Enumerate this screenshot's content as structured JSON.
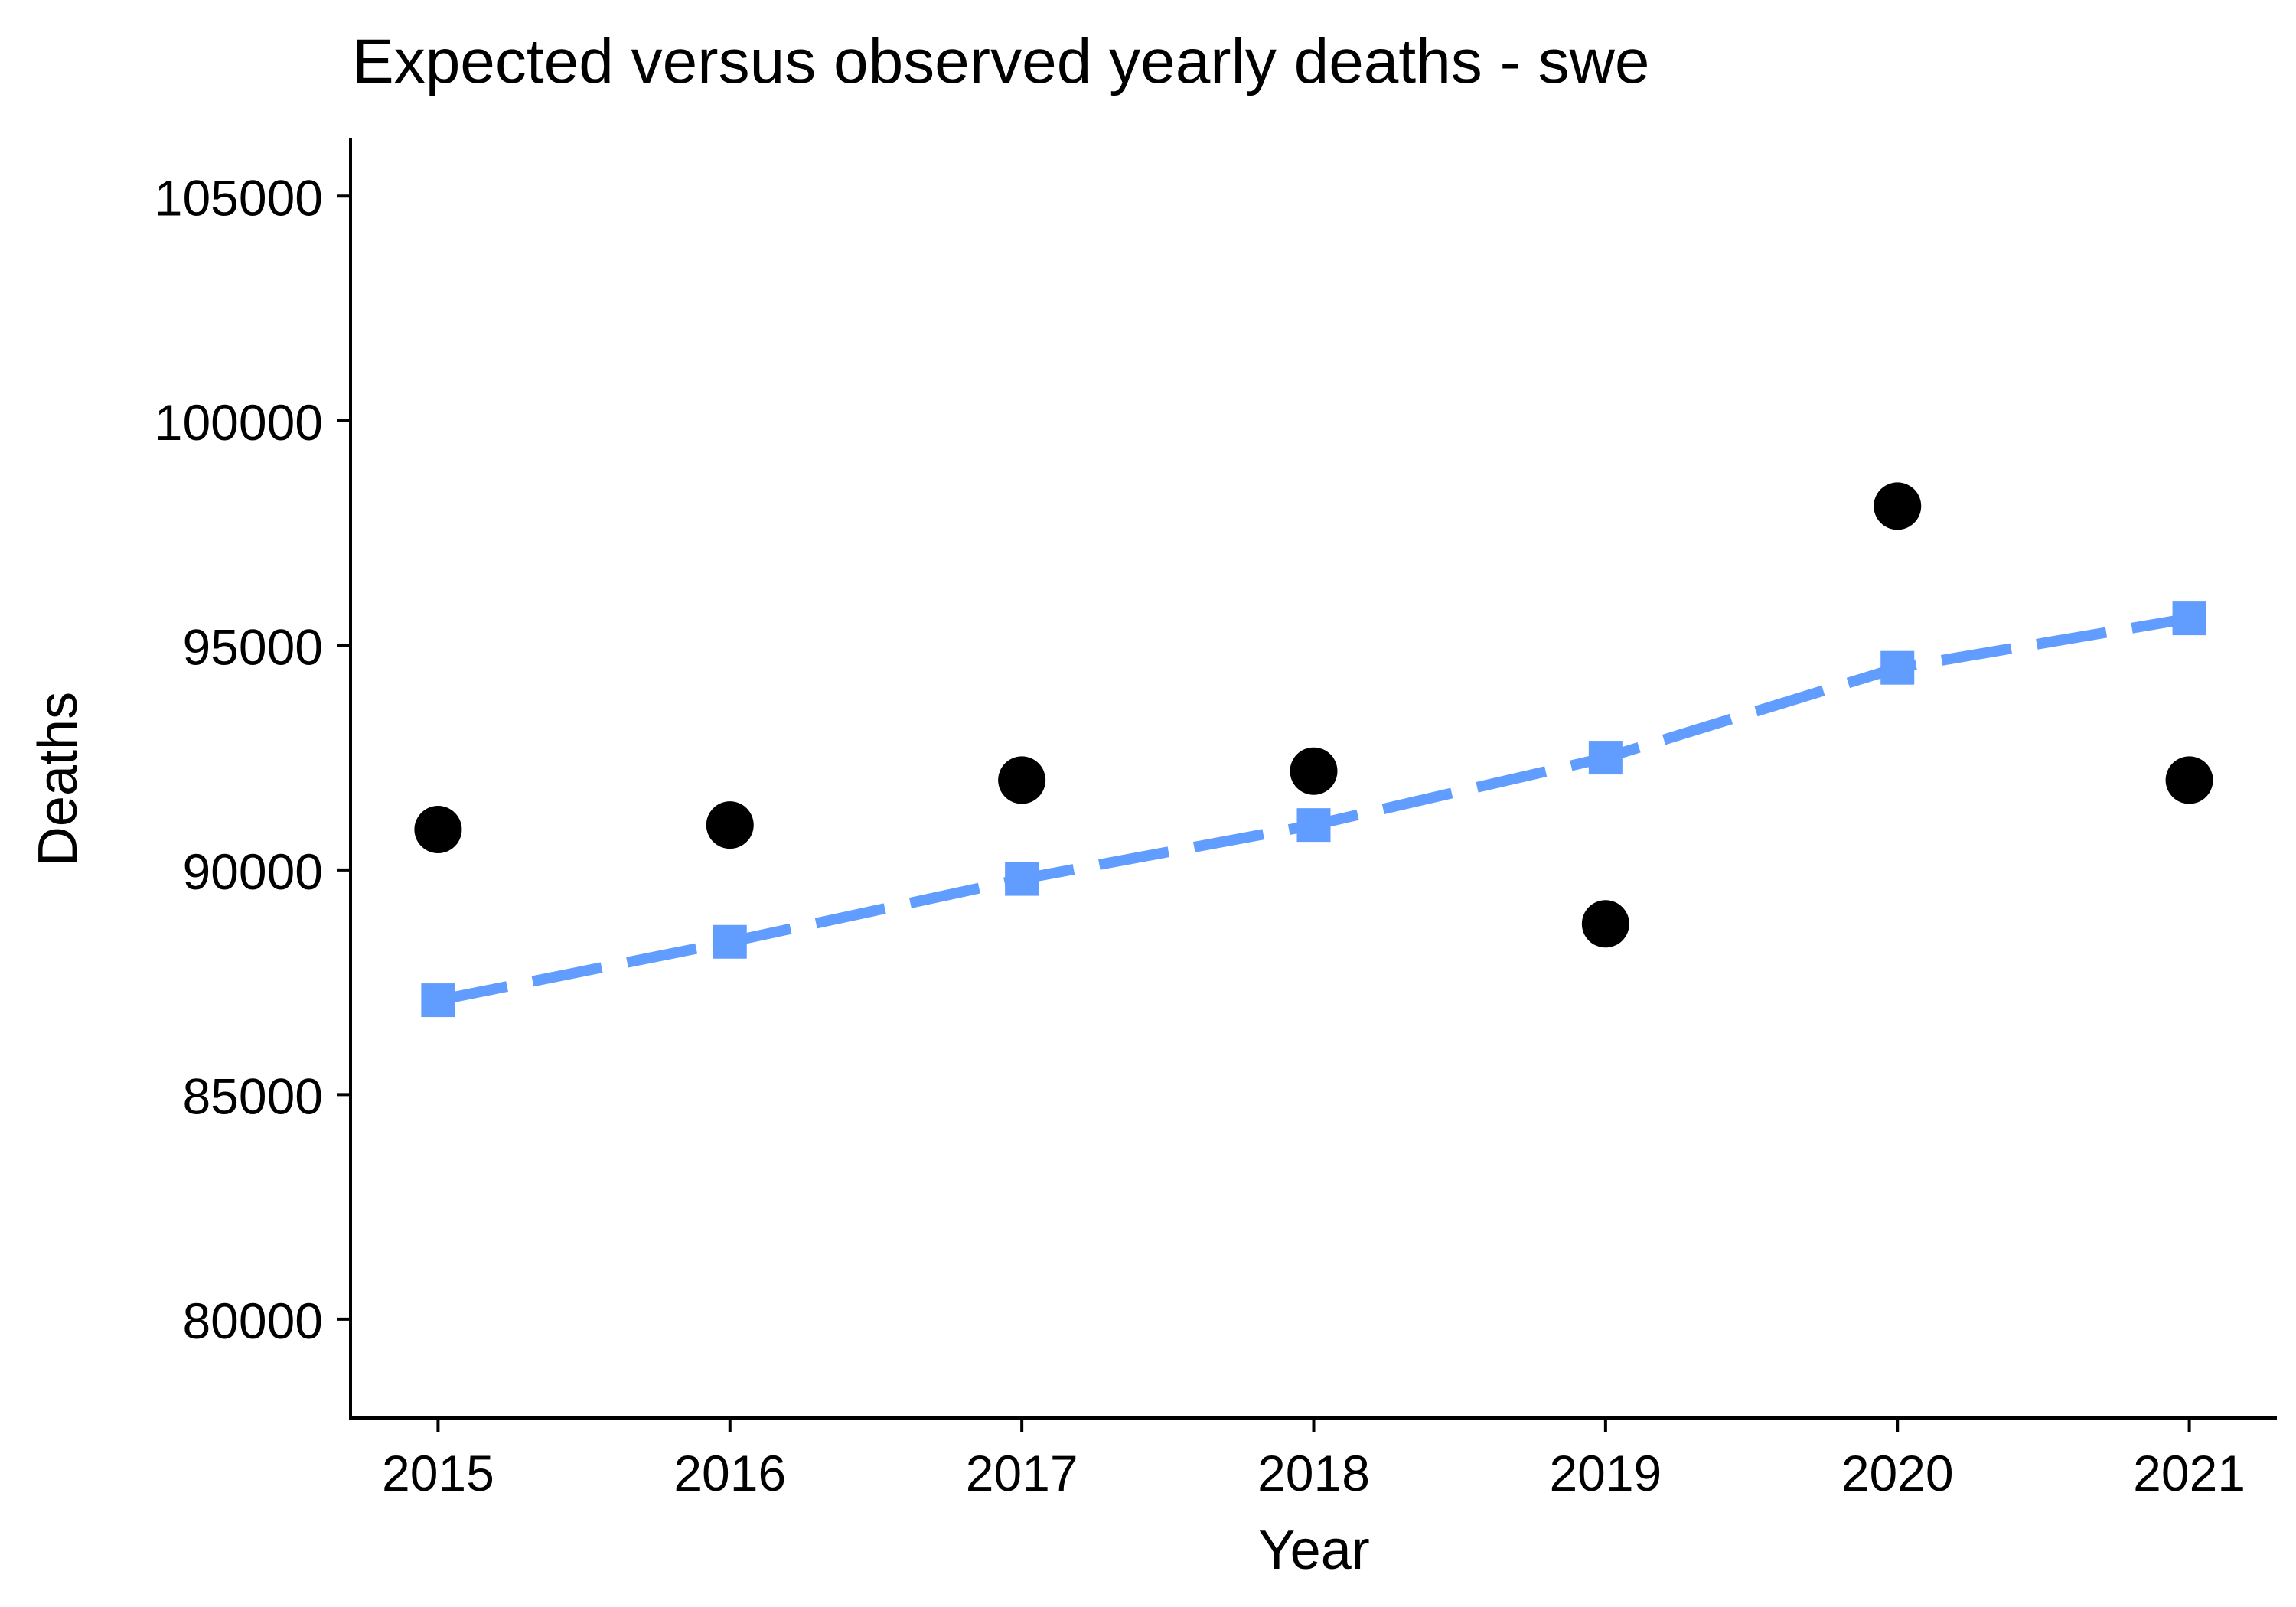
{
  "chart_data": {
    "type": "line",
    "title": "Expected versus observed yearly deaths - swe",
    "xlabel": "Year",
    "ylabel": "Deaths",
    "x": [
      2015,
      2016,
      2017,
      2018,
      2019,
      2020,
      2021
    ],
    "x_tick_labels": [
      "2015",
      "2016",
      "2017",
      "2018",
      "2019",
      "2020",
      "2021"
    ],
    "y_ticks": [
      80000,
      85000,
      90000,
      95000,
      100000,
      105000
    ],
    "y_tick_labels": [
      "80000",
      "85000",
      "90000",
      "95000",
      "100000",
      "105000"
    ],
    "xlim": [
      2014.7,
      2021.3
    ],
    "ylim": [
      77800,
      106300
    ],
    "grid": false,
    "legend": "none",
    "series": [
      {
        "kind": "observed",
        "style": "points",
        "marker": "circle",
        "color": "#000000",
        "values": [
          90900,
          91000,
          92000,
          92200,
          88800,
          98100,
          92000
        ]
      },
      {
        "kind": "expected",
        "style": "dashed-line-with-squares",
        "marker": "square",
        "color": "#619CFF",
        "values": [
          87100,
          88400,
          89800,
          91000,
          92500,
          94500,
          95600
        ]
      }
    ]
  }
}
